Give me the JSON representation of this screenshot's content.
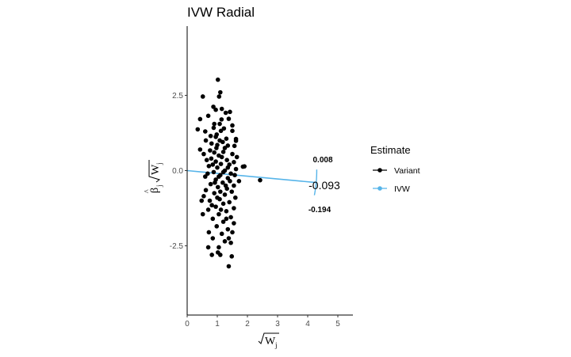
{
  "chart_data": {
    "type": "scatter",
    "title": "IVW Radial",
    "xlim": [
      0,
      5.5
    ],
    "ylim": [
      -4.8,
      4.8
    ],
    "x_ticks": [
      0,
      1,
      2,
      3,
      4,
      5
    ],
    "y_ticks": [
      -2.5,
      0.0,
      2.5
    ],
    "x_tick_labels": [
      "0",
      "1",
      "2",
      "3",
      "4",
      "5"
    ],
    "y_tick_labels": [
      "-2.5",
      "0.0",
      "2.5"
    ],
    "grid": false,
    "legend": {
      "title": "Estimate",
      "position": "right",
      "entries": [
        {
          "label": "Variant",
          "color": "#000000"
        },
        {
          "label": "IVW",
          "color": "#56B4E9"
        }
      ]
    },
    "ivw": {
      "estimate": -0.093,
      "ci_lower": -0.194,
      "ci_upper": 0.008,
      "estimate_label": "-0.093",
      "upper_label": "0.008",
      "lower_label": "-0.194",
      "line_color": "#56B4E9"
    },
    "point_color": "#000000",
    "series": [
      {
        "name": "Variant",
        "points": [
          [
            1.02,
            3.02
          ],
          [
            1.1,
            2.6
          ],
          [
            0.52,
            2.46
          ],
          [
            1.06,
            2.46
          ],
          [
            0.87,
            2.12
          ],
          [
            1.15,
            2.05
          ],
          [
            1.42,
            1.95
          ],
          [
            0.95,
            2.02
          ],
          [
            1.28,
            1.92
          ],
          [
            0.43,
            1.71
          ],
          [
            0.7,
            1.82
          ],
          [
            1.14,
            1.7
          ],
          [
            1.38,
            1.72
          ],
          [
            1.5,
            1.5
          ],
          [
            0.88,
            1.42
          ],
          [
            1.12,
            1.32
          ],
          [
            1.5,
            1.32
          ],
          [
            0.6,
            1.3
          ],
          [
            0.35,
            1.37
          ],
          [
            0.95,
            1.12
          ],
          [
            1.3,
            1.06
          ],
          [
            1.62,
            1.05
          ],
          [
            1.62,
            0.99
          ],
          [
            1.08,
            1.0
          ],
          [
            0.62,
            1.0
          ],
          [
            0.81,
            0.9
          ],
          [
            1.35,
            0.83
          ],
          [
            1.57,
            0.82
          ],
          [
            0.97,
            0.75
          ],
          [
            0.43,
            0.7
          ],
          [
            0.76,
            0.67
          ],
          [
            1.2,
            0.62
          ],
          [
            1.5,
            0.55
          ],
          [
            0.55,
            0.55
          ],
          [
            1.05,
            0.5
          ],
          [
            1.65,
            0.45
          ],
          [
            0.8,
            0.4
          ],
          [
            1.32,
            0.35
          ],
          [
            0.95,
            0.3
          ],
          [
            1.55,
            0.28
          ],
          [
            1.12,
            0.22
          ],
          [
            1.4,
            0.2
          ],
          [
            1.85,
            0.13
          ],
          [
            1.9,
            0.14
          ],
          [
            0.72,
            0.15
          ],
          [
            1.0,
            0.1
          ],
          [
            1.62,
            0.05
          ],
          [
            1.25,
            0.0
          ],
          [
            0.88,
            -0.05
          ],
          [
            1.45,
            -0.1
          ],
          [
            2.42,
            -0.32
          ],
          [
            1.1,
            -0.15
          ],
          [
            0.6,
            -0.2
          ],
          [
            1.35,
            -0.25
          ],
          [
            0.95,
            -0.3
          ],
          [
            1.72,
            -0.35
          ],
          [
            1.18,
            -0.4
          ],
          [
            0.78,
            -0.45
          ],
          [
            1.55,
            -0.5
          ],
          [
            1.02,
            -0.55
          ],
          [
            1.32,
            -0.6
          ],
          [
            0.62,
            -0.65
          ],
          [
            1.48,
            -0.7
          ],
          [
            0.9,
            -0.75
          ],
          [
            1.25,
            -0.8
          ],
          [
            0.55,
            -0.85
          ],
          [
            1.6,
            -0.9
          ],
          [
            1.08,
            -0.95
          ],
          [
            0.75,
            -1.0
          ],
          [
            1.4,
            -1.05
          ],
          [
            0.48,
            -1.0
          ],
          [
            1.2,
            -1.1
          ],
          [
            0.95,
            -1.2
          ],
          [
            1.55,
            -1.25
          ],
          [
            0.7,
            -1.3
          ],
          [
            1.3,
            -1.35
          ],
          [
            1.05,
            -1.45
          ],
          [
            0.52,
            -1.45
          ],
          [
            1.45,
            -1.55
          ],
          [
            0.85,
            -1.6
          ],
          [
            1.2,
            -1.7
          ],
          [
            1.55,
            -1.75
          ],
          [
            0.98,
            -1.85
          ],
          [
            1.35,
            -1.95
          ],
          [
            0.72,
            -2.05
          ],
          [
            1.15,
            -2.1
          ],
          [
            1.5,
            -2.05
          ],
          [
            0.85,
            -2.25
          ],
          [
            1.25,
            -2.35
          ],
          [
            1.38,
            -2.25
          ],
          [
            0.7,
            -2.55
          ],
          [
            1.05,
            -2.55
          ],
          [
            1.45,
            -2.4
          ],
          [
            0.82,
            -2.8
          ],
          [
            1.02,
            -2.72
          ],
          [
            1.1,
            -2.8
          ],
          [
            1.48,
            -2.85
          ],
          [
            1.38,
            -3.18
          ],
          [
            0.9,
            0.6
          ],
          [
            1.0,
            0.85
          ],
          [
            1.15,
            0.45
          ],
          [
            0.85,
            0.2
          ],
          [
            1.2,
            -0.05
          ],
          [
            1.05,
            -0.2
          ],
          [
            0.92,
            -0.4
          ],
          [
            1.28,
            -0.5
          ],
          [
            1.1,
            -0.7
          ],
          [
            1.0,
            -0.9
          ],
          [
            1.18,
            0.95
          ],
          [
            0.98,
            1.2
          ],
          [
            1.08,
            1.55
          ],
          [
            1.22,
            1.4
          ],
          [
            0.78,
            1.15
          ],
          [
            1.35,
            0.1
          ],
          [
            1.42,
            -0.35
          ],
          [
            0.68,
            -0.1
          ],
          [
            0.82,
            -1.15
          ],
          [
            1.12,
            -1.3
          ],
          [
            1.25,
            0.75
          ],
          [
            0.9,
            1.55
          ],
          [
            1.3,
            -1.6
          ],
          [
            0.65,
            0.35
          ],
          [
            1.58,
            -0.15
          ]
        ]
      }
    ]
  }
}
